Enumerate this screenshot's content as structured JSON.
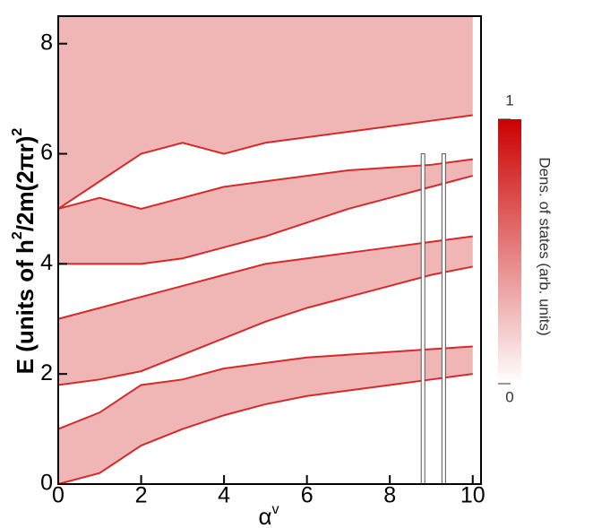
{
  "chart_data": {
    "type": "band",
    "xlabel": {
      "base": "α",
      "sup": "v"
    },
    "ylabel": {
      "parts": [
        "E (units of h",
        "2",
        "/2m(2",
        "π",
        "r)",
        "2"
      ]
    },
    "xlim": [
      0,
      10.2
    ],
    "ylim": [
      0,
      8.5
    ],
    "xticks": [
      0,
      2,
      4,
      6,
      8,
      10
    ],
    "yticks": [
      0,
      2,
      4,
      6,
      8
    ],
    "color": "#d42a2a",
    "x": [
      0,
      1,
      2,
      3,
      4,
      5,
      6,
      7,
      8,
      9,
      10
    ],
    "bands": [
      {
        "lower": [
          0,
          0.2,
          0.7,
          1.0,
          1.25,
          1.45,
          1.6,
          1.7,
          1.8,
          1.9,
          2.0
        ],
        "upper": [
          1.0,
          1.3,
          1.8,
          1.9,
          2.1,
          2.2,
          2.3,
          2.35,
          2.4,
          2.45,
          2.5
        ]
      },
      {
        "lower": [
          1.8,
          1.9,
          2.05,
          2.35,
          2.65,
          2.95,
          3.2,
          3.4,
          3.6,
          3.8,
          3.95
        ],
        "upper": [
          3.0,
          3.2,
          3.4,
          3.6,
          3.8,
          4.0,
          4.1,
          4.2,
          4.3,
          4.4,
          4.5
        ]
      },
      {
        "lower": [
          4.0,
          4.0,
          4.0,
          4.1,
          4.3,
          4.5,
          4.75,
          5.0,
          5.2,
          5.4,
          5.6
        ],
        "upper": [
          5.0,
          5.2,
          5.0,
          5.2,
          5.4,
          5.5,
          5.6,
          5.7,
          5.75,
          5.8,
          5.9
        ]
      },
      {
        "lower": [
          5.0,
          5.5,
          6.0,
          6.2,
          6.0,
          6.2,
          6.3,
          6.4,
          6.5,
          6.6,
          6.7
        ],
        "upper": [
          8.5,
          8.5,
          8.5,
          8.5,
          8.5,
          8.5,
          8.5,
          8.5,
          8.5,
          8.5,
          8.5
        ]
      }
    ],
    "markers": [
      {
        "x": 8.8,
        "top": 6
      },
      {
        "x": 9.3,
        "top": 6
      }
    ],
    "colorbar": {
      "title": "Dens. of states (arb. units)",
      "lim": [
        0,
        1
      ],
      "ticks": [
        0,
        1
      ],
      "colors": [
        "#ffffff",
        "#cc0000"
      ]
    }
  }
}
